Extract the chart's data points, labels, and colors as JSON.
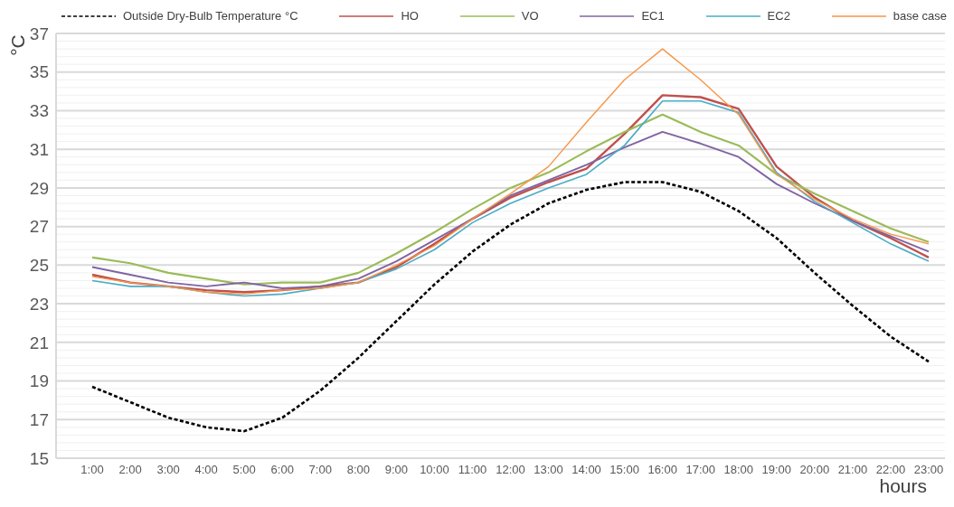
{
  "chart_data": {
    "type": "line",
    "xlabel": "hours",
    "ylabel": "°C",
    "legend": "top",
    "grid": "y",
    "ylim": [
      15,
      37
    ],
    "yticks": [
      15,
      {
        "value": 15.4,
        "label": null
      },
      {
        "value": 15.8,
        "label": null
      },
      {
        "value": 16.2,
        "label": null
      },
      {
        "value": 16.6,
        "label": null
      },
      17,
      {
        "value": 17.4,
        "label": null
      },
      {
        "value": 17.8,
        "label": null
      },
      {
        "value": 18.2,
        "label": null
      },
      {
        "value": 18.6,
        "label": null
      },
      19,
      {
        "value": 19.4,
        "label": null
      },
      {
        "value": 19.8,
        "label": null
      },
      {
        "value": 20.2,
        "label": null
      },
      {
        "value": 20.6,
        "label": null
      },
      21,
      {
        "value": 21.4,
        "label": null
      },
      {
        "value": 21.8,
        "label": null
      },
      {
        "value": 22.2,
        "label": null
      },
      {
        "value": 22.6,
        "label": null
      },
      23,
      {
        "value": 23.4,
        "label": null
      },
      {
        "value": 23.8,
        "label": null
      },
      {
        "value": 24.2,
        "label": null
      },
      {
        "value": 24.6,
        "label": null
      },
      25,
      {
        "value": 25.4,
        "label": null
      },
      {
        "value": 25.8,
        "label": null
      },
      {
        "value": 26.2,
        "label": null
      },
      {
        "value": 26.6,
        "label": null
      },
      27,
      {
        "value": 27.4,
        "label": null
      },
      {
        "value": 27.8,
        "label": null
      },
      {
        "value": 28.2,
        "label": null
      },
      {
        "value": 28.6,
        "label": null
      },
      29,
      {
        "value": 29.4,
        "label": null
      },
      {
        "value": 29.8,
        "label": null
      },
      {
        "value": 30.2,
        "label": null
      },
      {
        "value": 30.6,
        "label": null
      },
      31,
      {
        "value": 31.4,
        "label": null
      },
      {
        "value": 31.8,
        "label": null
      },
      {
        "value": 32.2,
        "label": null
      },
      {
        "value": 32.6,
        "label": null
      },
      33,
      {
        "value": 33.4,
        "label": null
      },
      {
        "value": 33.8,
        "label": null
      },
      {
        "value": 34.2,
        "label": null
      },
      {
        "value": 34.6,
        "label": null
      },
      35,
      {
        "value": 35.4,
        "label": null
      },
      {
        "value": 35.8,
        "label": null
      },
      {
        "value": 36.2,
        "label": null
      },
      {
        "value": 36.6,
        "label": null
      },
      37
    ],
    "categories": [
      "1:00",
      "2:00",
      "3:00",
      "4:00",
      "5:00",
      "6:00",
      "7:00",
      "8:00",
      "9:00",
      "10:00",
      "11:00",
      "12:00",
      "13:00",
      "14:00",
      "15:00",
      "16:00",
      "17:00",
      "18:00",
      "19:00",
      "20:00",
      "21:00",
      "22:00",
      "23:00"
    ],
    "series": [
      {
        "name": "Outside Dry-Bulb Temperature °C",
        "color": "#000000",
        "line_style": "dashed",
        "values": [
          18.7,
          17.9,
          17.1,
          16.6,
          16.4,
          17.1,
          18.5,
          20.2,
          22.1,
          24.0,
          25.7,
          27.1,
          28.2,
          28.9,
          29.3,
          29.3,
          28.8,
          27.8,
          26.4,
          24.6,
          22.9,
          21.3,
          20.0
        ]
      },
      {
        "name": "HO",
        "color": "#c0504d",
        "values": [
          24.5,
          24.1,
          23.9,
          23.7,
          23.6,
          23.7,
          23.9,
          24.1,
          24.9,
          26.1,
          27.4,
          28.5,
          29.3,
          30.0,
          31.8,
          33.8,
          33.7,
          33.1,
          30.1,
          28.5,
          27.3,
          26.4,
          25.4
        ]
      },
      {
        "name": "VO",
        "color": "#9bbb59",
        "values": [
          25.4,
          25.1,
          24.6,
          24.3,
          24.0,
          24.1,
          24.1,
          24.6,
          25.6,
          26.7,
          27.9,
          29.0,
          29.8,
          30.9,
          31.9,
          32.8,
          31.9,
          31.2,
          29.7,
          28.7,
          27.8,
          26.9,
          26.2
        ]
      },
      {
        "name": "EC1",
        "color": "#8064a2",
        "values": [
          24.9,
          24.5,
          24.1,
          23.9,
          24.1,
          23.8,
          23.9,
          24.3,
          25.2,
          26.3,
          27.4,
          28.6,
          29.4,
          30.2,
          31.1,
          31.9,
          31.3,
          30.6,
          29.2,
          28.2,
          27.3,
          26.5,
          25.7
        ]
      },
      {
        "name": "EC2",
        "color": "#4bacc6",
        "values": [
          24.2,
          23.9,
          23.9,
          23.6,
          23.4,
          23.5,
          23.8,
          24.1,
          24.8,
          25.8,
          27.2,
          28.2,
          29.0,
          29.7,
          31.2,
          33.5,
          33.5,
          32.9,
          29.8,
          28.3,
          27.2,
          26.1,
          25.2
        ]
      },
      {
        "name": "base case",
        "color": "#f79646",
        "values": [
          24.4,
          24.1,
          23.9,
          23.6,
          23.5,
          23.7,
          23.8,
          24.1,
          25.0,
          26.0,
          27.4,
          28.7,
          30.1,
          32.4,
          34.6,
          36.2,
          34.6,
          32.8,
          29.7,
          28.4,
          27.4,
          26.6,
          26.1
        ]
      }
    ]
  }
}
